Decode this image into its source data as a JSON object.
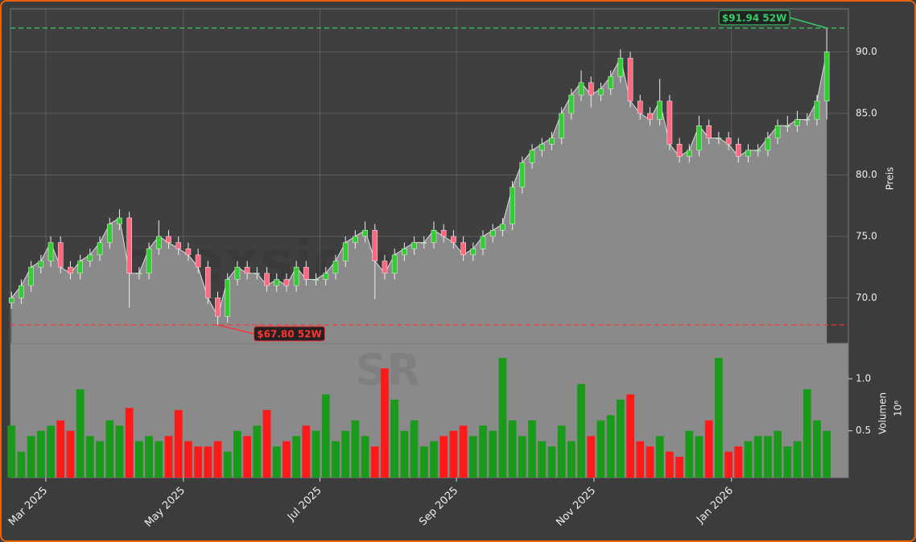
{
  "chart_data": {
    "type": "candlestick",
    "open": [
      69.6,
      70,
      71,
      72.5,
      73,
      74.5,
      72.5,
      72,
      73,
      73.5,
      74.5,
      76,
      76.5,
      72,
      72,
      74,
      75,
      74.5,
      74,
      73.5,
      72.5,
      70,
      68.5,
      71.5,
      72.5,
      72,
      72,
      71,
      71.5,
      71,
      72.5,
      71.5,
      71.5,
      72,
      73,
      74.5,
      75,
      75.5,
      73,
      72,
      73.5,
      74,
      74.5,
      74.5,
      75.5,
      75,
      74.5,
      73.5,
      74,
      75,
      75.5,
      76,
      79,
      81,
      82,
      82.5,
      83,
      85,
      86.5,
      87.5,
      86.5,
      87,
      88,
      89.5,
      86,
      85,
      84.5,
      86,
      82.5,
      81.5,
      82,
      84,
      83,
      83,
      82.5,
      81.5,
      82,
      82,
      83,
      84,
      84,
      84.5,
      84.5,
      86
    ],
    "high": [
      70.5,
      71.5,
      73,
      73.5,
      75,
      75,
      73,
      73.5,
      74,
      75,
      76.5,
      77.2,
      77,
      72.5,
      74.5,
      76.3,
      75.5,
      75,
      74.5,
      74,
      73,
      70.5,
      72,
      73,
      73,
      72.5,
      72.5,
      72,
      72,
      73,
      73,
      72,
      72.5,
      73.5,
      75,
      75.5,
      76.2,
      76,
      73.5,
      74,
      74.5,
      75,
      75,
      76.2,
      76,
      75.5,
      75,
      74.5,
      75.5,
      76,
      76.5,
      79.5,
      81.5,
      82.5,
      83,
      83.5,
      85.5,
      87,
      88.5,
      88,
      87.5,
      88.5,
      90.2,
      90,
      86.5,
      85.5,
      87.8,
      86.5,
      83,
      82.5,
      84.8,
      84.5,
      83.5,
      83.5,
      83,
      82.5,
      82.5,
      83.5,
      84.5,
      84.8,
      85.2,
      85,
      86.5,
      91.94
    ],
    "low": [
      69.1,
      69.5,
      70.5,
      72,
      72.5,
      72,
      71.5,
      71.5,
      72.5,
      73,
      74,
      75.5,
      69.2,
      71.5,
      71.5,
      73.5,
      74,
      73.5,
      73,
      72,
      69.5,
      67.8,
      68,
      71,
      71.5,
      71.5,
      70.5,
      70.5,
      70.5,
      70.5,
      71,
      71,
      71,
      71.5,
      72.5,
      74,
      74.5,
      69.9,
      71.5,
      71.5,
      73,
      73.5,
      74,
      74,
      74.5,
      74,
      73,
      73,
      73.5,
      74.5,
      75,
      75.5,
      78.5,
      80.5,
      81.5,
      82,
      82.5,
      84.5,
      86,
      85.5,
      86,
      86.5,
      87.5,
      85.5,
      84.5,
      84,
      84,
      82,
      81,
      81,
      81.5,
      82.5,
      82.5,
      82,
      81,
      81,
      81.5,
      81.5,
      82.5,
      83.5,
      83.5,
      84,
      84,
      84.5
    ],
    "close": [
      70,
      71,
      72.5,
      73,
      74.5,
      72.5,
      72,
      73,
      73.5,
      74.5,
      76,
      76.5,
      72,
      72,
      74,
      75,
      74.5,
      74,
      73.5,
      72.5,
      70,
      68.5,
      71.5,
      72.5,
      72,
      72,
      71,
      71.5,
      71,
      72.5,
      71.5,
      71.5,
      72,
      73,
      74.5,
      75,
      75.5,
      73,
      72,
      73.5,
      74,
      74.5,
      74.5,
      75.5,
      75,
      74.5,
      73.5,
      74,
      75,
      75.5,
      76,
      79,
      81,
      82,
      82.5,
      83,
      85,
      86.5,
      87.5,
      86.5,
      87,
      88,
      89.5,
      86,
      85,
      84.5,
      86,
      82.5,
      81.5,
      82,
      84,
      83,
      83,
      82.5,
      81.5,
      82,
      82,
      83,
      84,
      84,
      84.5,
      84.5,
      86,
      90
    ],
    "up_color": "#33cc33",
    "down_color": "#ff6680",
    "area_color": "#8a8a8a",
    "xlim": [
      -0.1,
      85.2
    ],
    "xticks": [
      {
        "value": 3.5,
        "label": "Mar 2025"
      },
      {
        "value": 17.5,
        "label": "May 2025"
      },
      {
        "value": 31.4,
        "label": "Jul 2025"
      },
      {
        "value": 45.3,
        "label": "Sep 2025"
      },
      {
        "value": 59.3,
        "label": "Nov 2025"
      },
      {
        "value": 73.3,
        "label": "Jan 2026"
      }
    ],
    "ylim": [
      66.3,
      93.5
    ],
    "yticks": [
      {
        "value": 70,
        "label": "70.0"
      },
      {
        "value": 75,
        "label": "75.0"
      },
      {
        "value": 80,
        "label": "80.0"
      },
      {
        "value": 85,
        "label": "85.0"
      },
      {
        "value": 90,
        "label": "90.0"
      }
    ],
    "ylabel": "Preis",
    "grid": true,
    "annotations": [
      {
        "value": 91.94,
        "label": "$91.94 52W",
        "index": 83,
        "color": "#33cc66"
      },
      {
        "value": 67.8,
        "label": "$67.80 52W",
        "index": 21,
        "color": "#ff3333"
      }
    ],
    "volume": {
      "values": [
        0.55,
        0.3,
        0.45,
        0.5,
        0.55,
        0.6,
        0.5,
        0.9,
        0.45,
        0.4,
        0.6,
        0.55,
        0.72,
        0.4,
        0.45,
        0.4,
        0.45,
        0.7,
        0.4,
        0.35,
        0.35,
        0.4,
        0.3,
        0.5,
        0.45,
        0.55,
        0.7,
        0.35,
        0.4,
        0.45,
        0.55,
        0.5,
        0.85,
        0.4,
        0.5,
        0.6,
        0.45,
        0.35,
        1.1,
        0.8,
        0.5,
        0.6,
        0.35,
        0.4,
        0.45,
        0.5,
        0.55,
        0.45,
        0.55,
        0.5,
        1.2,
        0.6,
        0.45,
        0.6,
        0.4,
        0.35,
        0.55,
        0.4,
        0.95,
        0.45,
        0.6,
        0.65,
        0.8,
        0.85,
        0.4,
        0.35,
        0.45,
        0.3,
        0.25,
        0.5,
        0.45,
        0.6,
        1.2,
        0.3,
        0.35,
        0.4,
        0.45,
        0.45,
        0.5,
        0.35,
        0.4,
        0.9,
        0.6,
        0.5
      ],
      "up_color": "#1a9a1a",
      "down_color": "#ff1a1a",
      "ylim": [
        0.05,
        1.34
      ],
      "yticks": [
        {
          "value": 0.5,
          "label": "0.5"
        },
        {
          "value": 1,
          "label": "1.0"
        }
      ],
      "ylabel": "Volumen",
      "scale_label": "10⁶"
    },
    "watermark": "forexsignale.trade",
    "logo": "SR"
  }
}
